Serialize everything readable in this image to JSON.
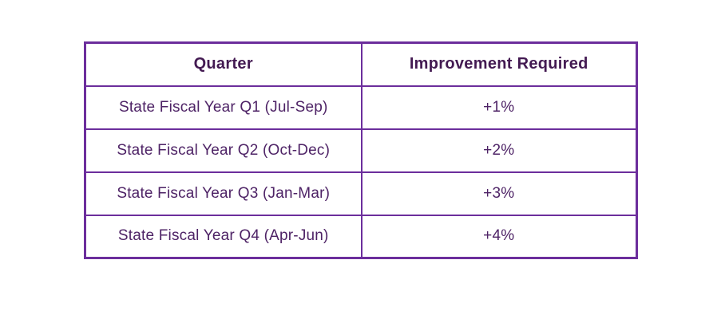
{
  "table": {
    "headers": [
      "Quarter",
      "Improvement Required"
    ],
    "rows": [
      {
        "quarter": "State Fiscal Year Q1 (Jul-Sep)",
        "improvement": "+1%"
      },
      {
        "quarter": "State Fiscal Year Q2 (Oct-Dec)",
        "improvement": "+2%"
      },
      {
        "quarter": "State Fiscal Year Q3 (Jan-Mar)",
        "improvement": "+3%"
      },
      {
        "quarter": "State Fiscal Year Q4 (Apr-Jun)",
        "improvement": "+4%"
      }
    ]
  },
  "colors": {
    "border": "#6c2e9c",
    "header_text": "#431a52",
    "body_text": "#4e2366",
    "background": "#ffffff"
  }
}
